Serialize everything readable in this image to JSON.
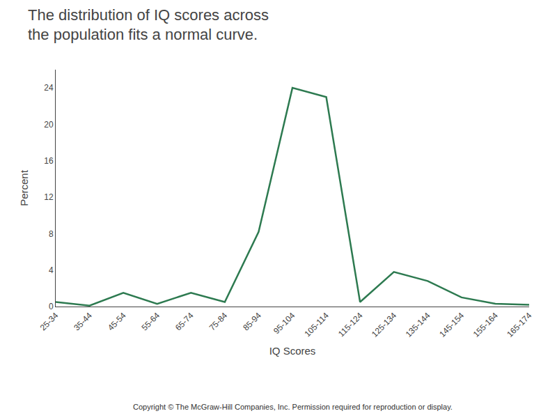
{
  "chart_data": {
    "type": "line",
    "title": "The distribution of IQ scores across\nthe population fits a normal curve.",
    "x_label": "IQ Scores",
    "y_label": "Percent",
    "annotations": [
      "Copyright © The McGraw-Hill Companies, Inc. Permission required for reproduction or display."
    ],
    "categories": [
      "25-34",
      "35-44",
      "45-54",
      "55-64",
      "65-74",
      "75-84",
      "85-94",
      "95-104",
      "105-114",
      "115-124",
      "125-134",
      "135-144",
      "145-154",
      "155-164",
      "165-174"
    ],
    "values": [
      0.5,
      0.1,
      1.5,
      0.3,
      1.5,
      0.5,
      8.2,
      24.0,
      23.0,
      0.5,
      3.8,
      2.8,
      1.0,
      0.3,
      0.2
    ],
    "color": "#2d7a50",
    "ylim": [
      0,
      26
    ],
    "yticks": [
      0,
      4,
      8,
      12,
      16,
      20,
      24
    ],
    "grid": false
  }
}
